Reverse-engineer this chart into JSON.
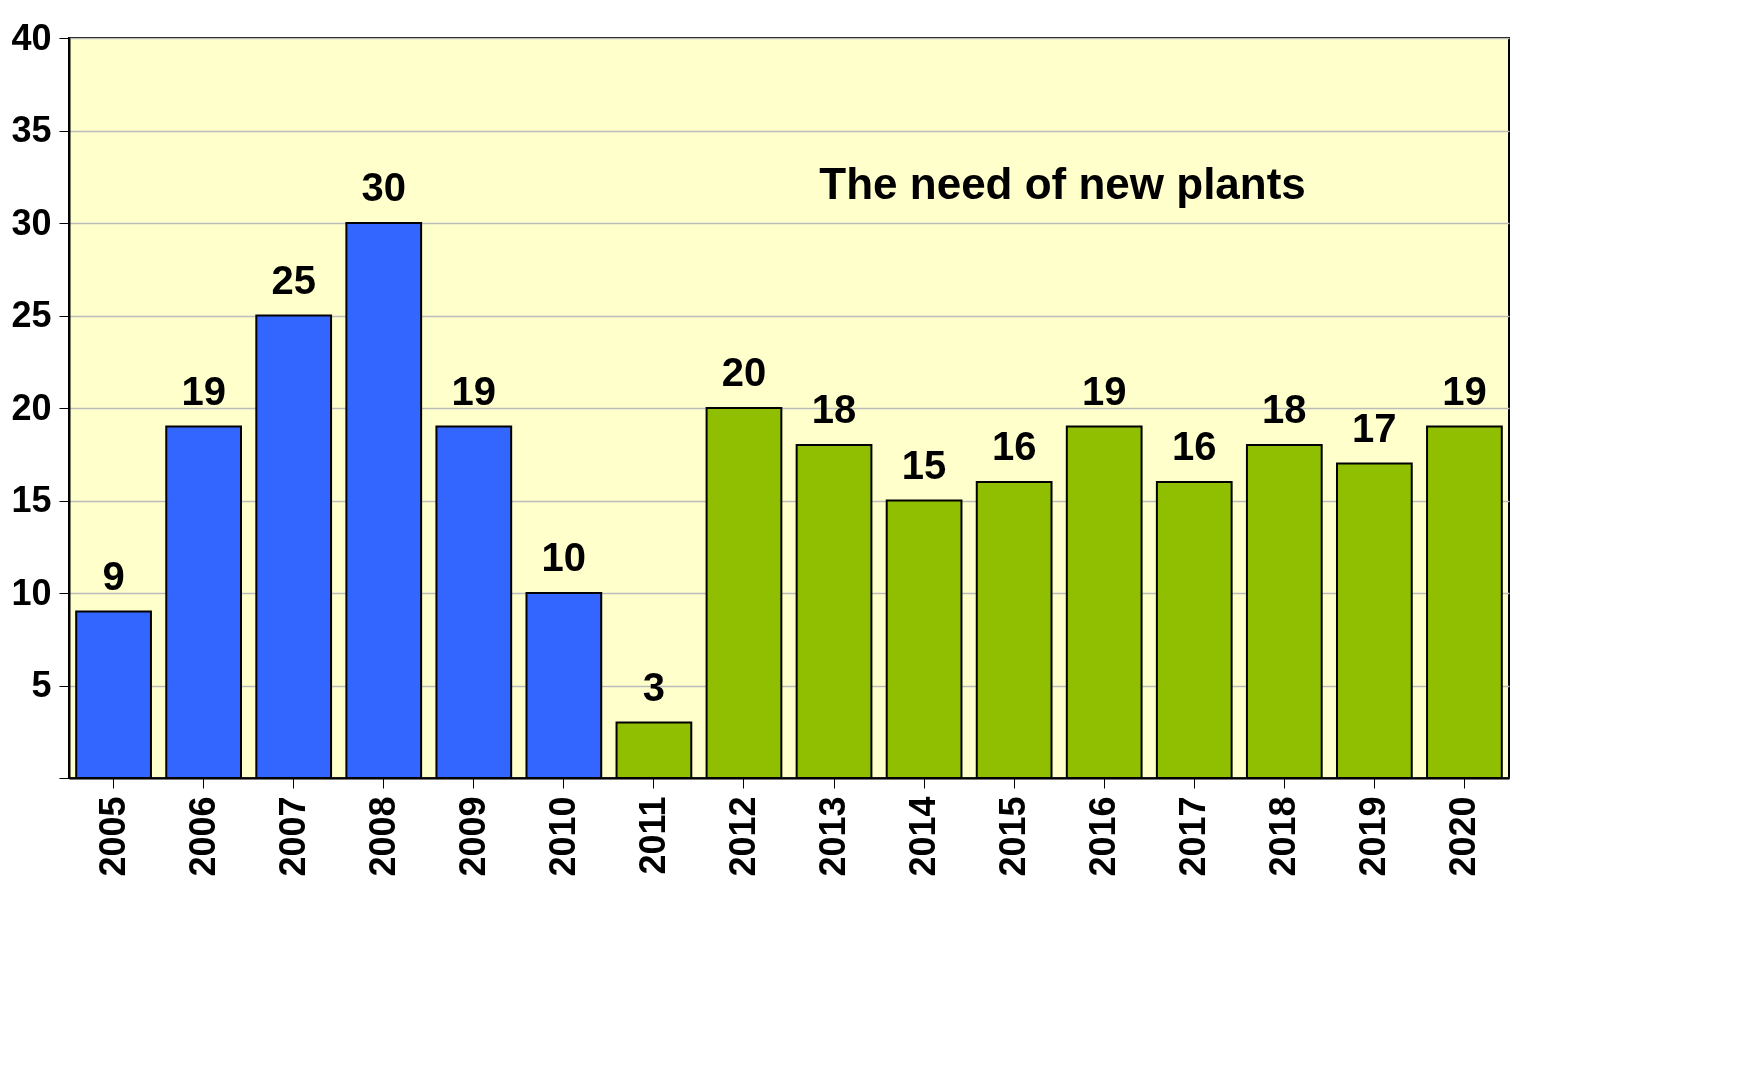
{
  "chart_data": {
    "type": "bar",
    "categories": [
      "2005",
      "2006",
      "2007",
      "2008",
      "2009",
      "2010",
      "2011",
      "2012",
      "2013",
      "2014",
      "2015",
      "2016",
      "2017",
      "2018",
      "2019",
      "2020"
    ],
    "values": [
      9,
      19,
      25,
      30,
      19,
      10,
      3,
      20,
      18,
      15,
      16,
      19,
      16,
      18,
      17,
      19
    ],
    "colors": [
      "#3366ff",
      "#3366ff",
      "#3366ff",
      "#3366ff",
      "#3366ff",
      "#3366ff",
      "#8fbf00",
      "#8fbf00",
      "#8fbf00",
      "#8fbf00",
      "#8fbf00",
      "#8fbf00",
      "#8fbf00",
      "#8fbf00",
      "#8fbf00",
      "#8fbf00"
    ],
    "ylim": [
      0,
      40
    ],
    "yticks": [
      {
        "value": 0,
        "label": null
      },
      5,
      10,
      15,
      20,
      25,
      30,
      35,
      40
    ],
    "grid": "y",
    "data_labels": true,
    "annotations": [
      "The need of new plants"
    ]
  }
}
